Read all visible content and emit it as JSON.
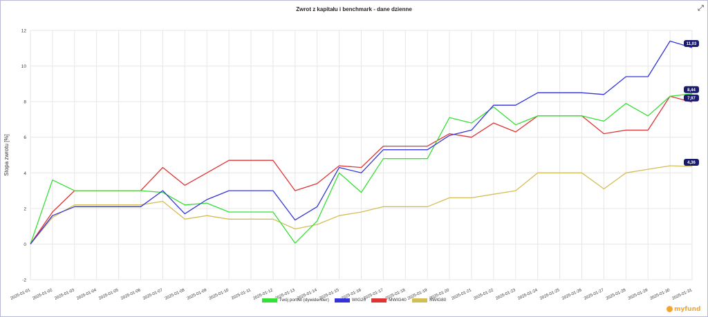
{
  "chart_data": {
    "type": "line",
    "title": "Zwrot z kapitału i benchmark - dane dzienne",
    "ylabel": "Stopa zwrotu [%]",
    "xlabel": "",
    "ylim": [
      -2,
      12
    ],
    "yticks": [
      -2,
      0,
      2,
      4,
      6,
      8,
      10,
      12
    ],
    "grid": true,
    "legend": "bottom",
    "x": [
      "2025-01-01",
      "2025-01-02",
      "2025-01-03",
      "2025-01-04",
      "2025-01-05",
      "2025-01-06",
      "2025-01-07",
      "2025-01-08",
      "2025-01-09",
      "2025-01-10",
      "2025-01-11",
      "2025-01-12",
      "2025-01-13",
      "2025-01-14",
      "2025-01-15",
      "2025-01-16",
      "2025-01-17",
      "2025-01-18",
      "2025-01-19",
      "2025-01-20",
      "2025-01-21",
      "2025-01-22",
      "2025-01-23",
      "2025-01-24",
      "2025-01-25",
      "2025-01-26",
      "2025-01-27",
      "2025-01-28",
      "2025-01-29",
      "2025-01-30",
      "2025-01-31"
    ],
    "series": [
      {
        "name": "Twój portfel (dywidentier)",
        "color": "#33e033",
        "end_label": "8,44",
        "values": [
          0,
          3.6,
          3.0,
          3.0,
          3.0,
          3.0,
          2.9,
          2.2,
          2.3,
          1.8,
          1.8,
          1.8,
          0.05,
          1.3,
          4.0,
          2.9,
          4.8,
          4.8,
          4.8,
          7.1,
          6.8,
          7.7,
          6.7,
          7.2,
          7.2,
          7.2,
          6.9,
          7.9,
          7.2,
          8.3,
          8.44
        ]
      },
      {
        "name": "WIG20",
        "color": "#3333d9",
        "end_label": "11,03",
        "values": [
          0,
          1.6,
          2.1,
          2.1,
          2.1,
          2.1,
          3.0,
          1.7,
          2.5,
          3.0,
          3.0,
          3.0,
          1.35,
          2.1,
          4.3,
          4.0,
          5.3,
          5.3,
          5.3,
          6.1,
          6.4,
          7.8,
          7.8,
          8.5,
          8.5,
          8.5,
          8.4,
          9.4,
          9.4,
          11.4,
          11.03
        ]
      },
      {
        "name": "MWIG40",
        "color": "#e03333",
        "end_label": "7,97",
        "values": [
          0,
          1.8,
          3.0,
          3.0,
          3.0,
          3.0,
          4.3,
          3.3,
          4.0,
          4.7,
          4.7,
          4.7,
          3.0,
          3.4,
          4.4,
          4.3,
          5.5,
          5.5,
          5.5,
          6.2,
          6.0,
          6.8,
          6.3,
          7.2,
          7.2,
          7.2,
          6.2,
          6.4,
          6.4,
          8.3,
          7.97
        ]
      },
      {
        "name": "SWIG80",
        "color": "#d4bd55",
        "end_label": "4,36",
        "values": [
          0,
          1.5,
          2.2,
          2.2,
          2.2,
          2.2,
          2.4,
          1.4,
          1.6,
          1.4,
          1.4,
          1.4,
          0.85,
          1.1,
          1.6,
          1.8,
          2.1,
          2.1,
          2.1,
          2.6,
          2.6,
          2.8,
          3.0,
          4.0,
          4.0,
          4.0,
          3.1,
          4.0,
          4.2,
          4.4,
          4.36
        ]
      }
    ]
  },
  "ui": {
    "expand_icon": "⤢",
    "logo_text": "myfund"
  }
}
